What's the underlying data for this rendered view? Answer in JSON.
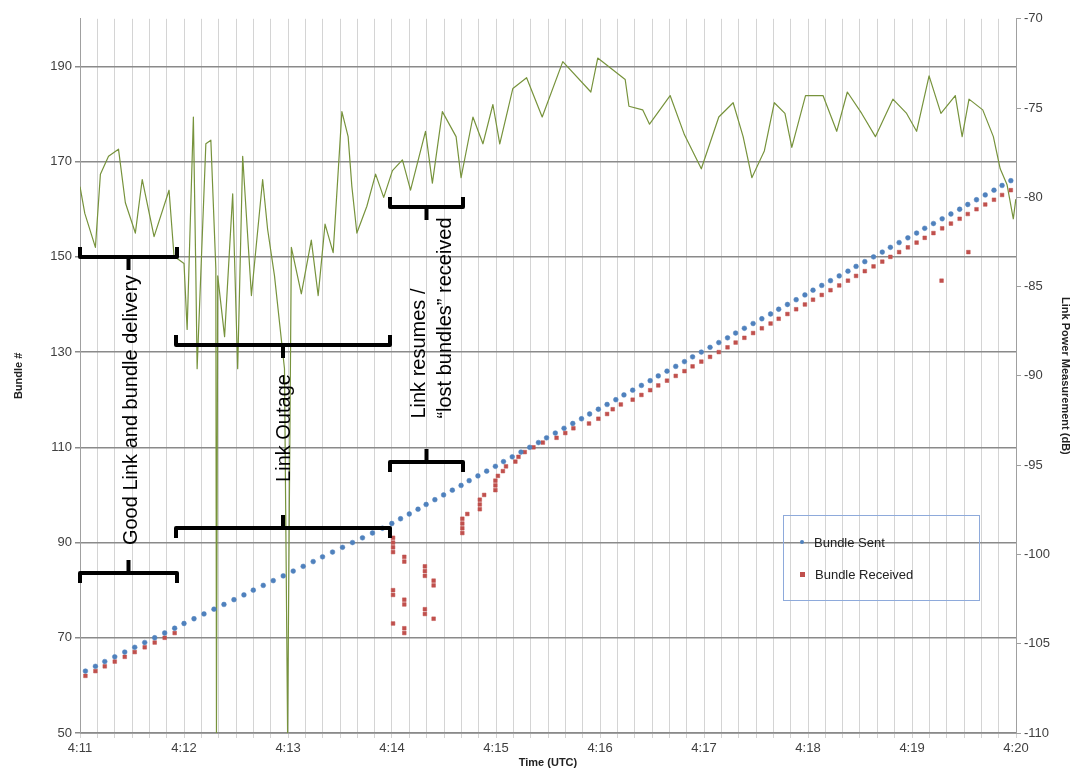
{
  "chart_data": {
    "type": "scatter",
    "xlabel": "Time (UTC)",
    "ylabel": "Bundle #",
    "y2label": "Link Power Measurement (dB)",
    "xlim": [
      4.18333,
      4.33333
    ],
    "xticks": [
      {
        "value": 4.18333,
        "label": "4:11"
      },
      {
        "value": 4.18611,
        "label": null
      },
      {
        "value": 4.18889,
        "label": null
      },
      {
        "value": 4.19167,
        "label": null
      },
      {
        "value": 4.19444,
        "label": null
      },
      {
        "value": 4.19722,
        "label": null
      },
      {
        "value": 4.2,
        "label": "4:12"
      },
      {
        "value": 4.20278,
        "label": null
      },
      {
        "value": 4.20556,
        "label": null
      },
      {
        "value": 4.20833,
        "label": null
      },
      {
        "value": 4.21111,
        "label": null
      },
      {
        "value": 4.21389,
        "label": null
      },
      {
        "value": 4.21667,
        "label": "4:13"
      },
      {
        "value": 4.21944,
        "label": null
      },
      {
        "value": 4.22222,
        "label": null
      },
      {
        "value": 4.225,
        "label": null
      },
      {
        "value": 4.22778,
        "label": null
      },
      {
        "value": 4.23056,
        "label": null
      },
      {
        "value": 4.23333,
        "label": "4:14"
      },
      {
        "value": 4.23611,
        "label": null
      },
      {
        "value": 4.23889,
        "label": null
      },
      {
        "value": 4.24167,
        "label": null
      },
      {
        "value": 4.24444,
        "label": null
      },
      {
        "value": 4.24722,
        "label": null
      },
      {
        "value": 4.25,
        "label": "4:15"
      },
      {
        "value": 4.25278,
        "label": null
      },
      {
        "value": 4.25556,
        "label": null
      },
      {
        "value": 4.25833,
        "label": null
      },
      {
        "value": 4.26111,
        "label": null
      },
      {
        "value": 4.26389,
        "label": null
      },
      {
        "value": 4.26667,
        "label": "4:16"
      },
      {
        "value": 4.26944,
        "label": null
      },
      {
        "value": 4.27222,
        "label": null
      },
      {
        "value": 4.275,
        "label": null
      },
      {
        "value": 4.27778,
        "label": null
      },
      {
        "value": 4.28056,
        "label": null
      },
      {
        "value": 4.28333,
        "label": "4:17"
      },
      {
        "value": 4.28611,
        "label": null
      },
      {
        "value": 4.28889,
        "label": null
      },
      {
        "value": 4.29167,
        "label": null
      },
      {
        "value": 4.29444,
        "label": null
      },
      {
        "value": 4.29722,
        "label": null
      },
      {
        "value": 4.3,
        "label": "4:18"
      },
      {
        "value": 4.30278,
        "label": null
      },
      {
        "value": 4.30556,
        "label": null
      },
      {
        "value": 4.30833,
        "label": null
      },
      {
        "value": 4.31111,
        "label": null
      },
      {
        "value": 4.31389,
        "label": null
      },
      {
        "value": 4.31667,
        "label": "4:19"
      },
      {
        "value": 4.31944,
        "label": null
      },
      {
        "value": 4.32222,
        "label": null
      },
      {
        "value": 4.325,
        "label": null
      },
      {
        "value": 4.32778,
        "label": null
      },
      {
        "value": 4.33056,
        "label": null
      },
      {
        "value": 4.33333,
        "label": "4:20"
      }
    ],
    "ylim": [
      50,
      200
    ],
    "yticks": [
      50,
      70,
      90,
      110,
      130,
      150,
      170,
      190
    ],
    "y2lim": [
      -110,
      -70
    ],
    "y2ticks": [
      -110,
      -105,
      -100,
      -95,
      -90,
      -85,
      -80,
      -75,
      -70
    ],
    "grid": true,
    "legend": "bottom right",
    "annotations": [
      "Good Link and bundle delivery",
      "Link Outage",
      "Link resumes /\n“lost bundles” received"
    ],
    "series": [
      {
        "name": "Bundle Sent",
        "marker": "circle",
        "color": "#4f81bd",
        "x": [
          4.1842,
          4.1858,
          4.1873,
          4.1889,
          4.1905,
          4.1921,
          4.1937,
          4.1953,
          4.1969,
          4.1985,
          4.2,
          4.2016,
          4.2032,
          4.2048,
          4.2064,
          4.208,
          4.2096,
          4.2111,
          4.2127,
          4.2143,
          4.2159,
          4.2175,
          4.2191,
          4.2207,
          4.2222,
          4.2238,
          4.2254,
          4.227,
          4.2286,
          4.2302,
          4.2318,
          4.2333,
          4.2347,
          4.2361,
          4.2375,
          4.2388,
          4.2402,
          4.2416,
          4.243,
          4.2444,
          4.2457,
          4.2471,
          4.2485,
          4.2499,
          4.2512,
          4.2526,
          4.254,
          4.2554,
          4.2568,
          4.2581,
          4.2595,
          4.2609,
          4.2623,
          4.2637,
          4.265,
          4.2664,
          4.2678,
          4.2692,
          4.2705,
          4.2719,
          4.2733,
          4.2747,
          4.276,
          4.2774,
          4.2788,
          4.2802,
          4.2815,
          4.2829,
          4.2843,
          4.2857,
          4.2871,
          4.2884,
          4.2898,
          4.2912,
          4.2926,
          4.294,
          4.2953,
          4.2967,
          4.2981,
          4.2995,
          4.3008,
          4.3022,
          4.3036,
          4.305,
          4.3064,
          4.3077,
          4.3091,
          4.3105,
          4.3119,
          4.3132,
          4.3146,
          4.316,
          4.3174,
          4.3187,
          4.3201,
          4.3215,
          4.3229,
          4.3243,
          4.3256,
          4.327,
          4.3284,
          4.3298,
          4.3311,
          4.3325
        ],
        "values": [
          63,
          64,
          65,
          66,
          67,
          68,
          69,
          70,
          71,
          72,
          73,
          74,
          75,
          76,
          77,
          78,
          79,
          80,
          81,
          82,
          83,
          84,
          85,
          86,
          87,
          88,
          89,
          90,
          91,
          92,
          93,
          94,
          95,
          96,
          97,
          98,
          99,
          100,
          101,
          102,
          103,
          104,
          105,
          106,
          107,
          108,
          109,
          110,
          111,
          112,
          113,
          114,
          115,
          116,
          117,
          118,
          119,
          120,
          121,
          122,
          123,
          124,
          125,
          126,
          127,
          128,
          129,
          130,
          131,
          132,
          133,
          134,
          135,
          136,
          137,
          138,
          139,
          140,
          141,
          142,
          143,
          144,
          145,
          146,
          147,
          148,
          149,
          150,
          151,
          152,
          153,
          154,
          155,
          156,
          157,
          158,
          159,
          160,
          161,
          162,
          163,
          164,
          165,
          166
        ]
      },
      {
        "name": "Bundle Received",
        "marker": "square",
        "color": "#c0504d",
        "x": [
          4.1842,
          4.1858,
          4.1873,
          4.1889,
          4.1905,
          4.1921,
          4.1937,
          4.1953,
          4.1969,
          4.1985,
          4.2335,
          4.2335,
          4.2335,
          4.2335,
          4.2335,
          4.2335,
          4.2335,
          4.2353,
          4.2353,
          4.2353,
          4.2353,
          4.2353,
          4.2353,
          4.2386,
          4.2386,
          4.2386,
          4.2386,
          4.2386,
          4.24,
          4.24,
          4.24,
          4.2446,
          4.2446,
          4.2446,
          4.2446,
          4.2454,
          4.2474,
          4.2474,
          4.2474,
          4.2481,
          4.2499,
          4.2499,
          4.2499,
          4.2503,
          4.2511,
          4.2516,
          4.2531,
          4.2536,
          4.2546,
          4.256,
          4.2575,
          4.2597,
          4.2611,
          4.2624,
          4.2649,
          4.2664,
          4.2678,
          4.2687,
          4.27,
          4.2719,
          4.2733,
          4.2747,
          4.276,
          4.2774,
          4.2788,
          4.2802,
          4.2815,
          4.2829,
          4.2843,
          4.2857,
          4.2871,
          4.2884,
          4.2898,
          4.2912,
          4.2926,
          4.294,
          4.2953,
          4.2967,
          4.2981,
          4.2995,
          4.3008,
          4.3022,
          4.3036,
          4.305,
          4.3064,
          4.3077,
          4.3091,
          4.3105,
          4.3119,
          4.3132,
          4.3146,
          4.316,
          4.3174,
          4.3187,
          4.3201,
          4.3215,
          4.3229,
          4.3243,
          4.3256,
          4.327,
          4.3284,
          4.3298,
          4.3311,
          4.3325,
          4.3214,
          4.3257
        ],
        "values": [
          62,
          63,
          64,
          65,
          66,
          67,
          68,
          69,
          70,
          71,
          91,
          90,
          89,
          88,
          80,
          79,
          73,
          87,
          86,
          78,
          77,
          72,
          71,
          85,
          84,
          83,
          76,
          75,
          82,
          81,
          74,
          95,
          94,
          93,
          92,
          96,
          99,
          98,
          97,
          100,
          103,
          102,
          101,
          104,
          105,
          106,
          107,
          108,
          109,
          110,
          111,
          112,
          113,
          114,
          115,
          116,
          117,
          118,
          119,
          120,
          121,
          122,
          123,
          124,
          125,
          126,
          127,
          128,
          129,
          130,
          131,
          132,
          133,
          134,
          135,
          136,
          137,
          138,
          139,
          140,
          141,
          142,
          143,
          144,
          145,
          146,
          147,
          148,
          149,
          150,
          151,
          152,
          153,
          154,
          155,
          156,
          157,
          158,
          159,
          160,
          161,
          162,
          163,
          164,
          145,
          151
        ]
      },
      {
        "type": "line",
        "axis": "y2",
        "marker": "none",
        "line_style": "solid",
        "color": "#77933c",
        "x": [
          4.18333,
          4.1841,
          4.1858,
          4.1866,
          4.1879,
          4.1895,
          4.1906,
          4.1922,
          4.1933,
          4.1952,
          4.1976,
          4.1984,
          4.2,
          4.2005,
          4.2015,
          4.2019,
          4.2021,
          4.2035,
          4.2043,
          4.2051,
          4.2052,
          4.2054,
          4.2065,
          4.2078,
          4.2086,
          4.2094,
          4.2108,
          4.2126,
          4.2134,
          4.2145,
          4.2161,
          4.2166,
          4.2172,
          4.2188,
          4.2204,
          4.2215,
          4.2226,
          4.2239,
          4.2253,
          4.2263,
          4.2269,
          4.2277,
          4.2293,
          4.2307,
          4.232,
          4.2334,
          4.235,
          4.2363,
          4.2387,
          4.2398,
          4.2414,
          4.2436,
          4.2444,
          4.2463,
          4.2479,
          4.2495,
          4.2506,
          4.2527,
          4.2549,
          4.2574,
          4.2607,
          4.2652,
          4.2663,
          4.2707,
          4.2713,
          4.2735,
          4.2746,
          4.2779,
          4.2802,
          4.2829,
          4.2857,
          4.288,
          4.2896,
          4.291,
          4.293,
          4.2946,
          4.2963,
          4.2974,
          4.2996,
          4.3024,
          4.3046,
          4.3063,
          4.3086,
          4.3108,
          4.3136,
          4.3158,
          4.3174,
          4.3194,
          4.3213,
          4.3236,
          4.3247,
          4.3258,
          4.328,
          4.3297,
          4.3308,
          4.3319,
          4.3329,
          4.3333
        ],
        "values": [
          -79.4,
          -80.9,
          -82.8,
          -78.7,
          -77.7,
          -77.3,
          -80.3,
          -82.0,
          -79.0,
          -82.2,
          -79.6,
          -83.3,
          -83.7,
          -87.4,
          -75.5,
          -84.4,
          -89.6,
          -77.0,
          -76.8,
          -84.0,
          -110,
          -84.4,
          -87.8,
          -79.8,
          -89.6,
          -77.7,
          -85.5,
          -79.0,
          -81.8,
          -84.4,
          -89.6,
          -110,
          -82.8,
          -85.4,
          -82.4,
          -85.5,
          -81.5,
          -83.1,
          -75.2,
          -76.6,
          -79.4,
          -82.0,
          -80.5,
          -78.7,
          -80.0,
          -78.5,
          -77.9,
          -79.6,
          -76.3,
          -79.2,
          -75.2,
          -76.6,
          -78.9,
          -75.5,
          -77.0,
          -74.8,
          -77.0,
          -73.9,
          -73.3,
          -75.5,
          -72.4,
          -74.1,
          -72.2,
          -73.4,
          -74.9,
          -75.1,
          -75.9,
          -74.3,
          -76.5,
          -78.4,
          -75.5,
          -74.7,
          -76.6,
          -78.9,
          -77.4,
          -74.7,
          -75.3,
          -77.2,
          -74.3,
          -74.3,
          -76.3,
          -74.1,
          -75.3,
          -76.6,
          -74.5,
          -75.3,
          -76.3,
          -73.2,
          -75.3,
          -74.3,
          -76.6,
          -74.5,
          -75.1,
          -76.6,
          -78.4,
          -79.3,
          -81.2,
          -80.1
        ]
      }
    ]
  }
}
